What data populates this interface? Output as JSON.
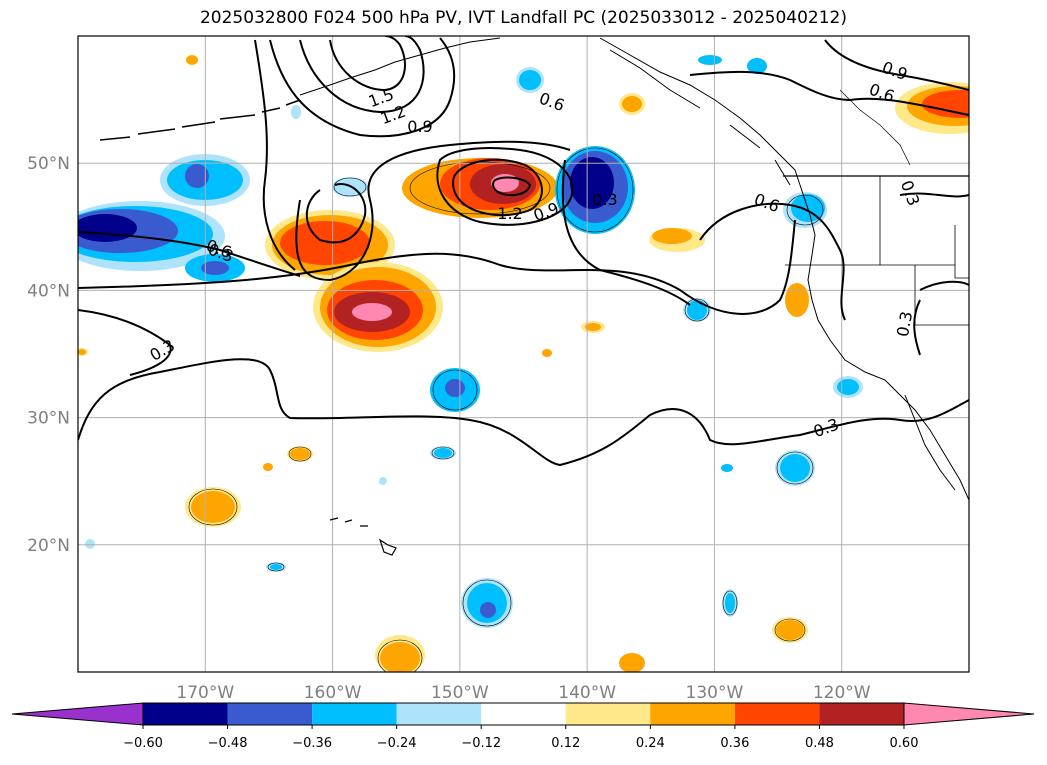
{
  "title": "2025032800 F024 500 hPa PV, IVT Landfall PC (2025033012 - 2025040212)",
  "chart_data": {
    "type": "heatmap",
    "title": "2025032800 F024 500 hPa PV, IVT Landfall PC (2025033012 - 2025040212)",
    "lon_range": [
      -180,
      -110
    ],
    "lat_range": [
      10,
      60
    ],
    "xlabel": "",
    "ylabel": "",
    "lat_ticks": [
      {
        "value": 50,
        "label": "50°N"
      },
      {
        "value": 40,
        "label": "40°N"
      },
      {
        "value": 30,
        "label": "30°N"
      },
      {
        "value": 20,
        "label": "20°N"
      }
    ],
    "lon_ticks": [
      {
        "value": -170,
        "label": "170°W"
      },
      {
        "value": -160,
        "label": "160°W"
      },
      {
        "value": -150,
        "label": "150°W"
      },
      {
        "value": -140,
        "label": "140°W"
      },
      {
        "value": -130,
        "label": "130°W"
      },
      {
        "value": -120,
        "label": "120°W"
      }
    ],
    "grid": true,
    "colorbar": {
      "position": "bottom",
      "extend": "both",
      "levels": [
        -0.6,
        -0.48,
        -0.36,
        -0.24,
        -0.12,
        0.12,
        0.24,
        0.36,
        0.48,
        0.6
      ],
      "tick_labels": [
        "−0.60",
        "−0.48",
        "−0.36",
        "−0.24",
        "−0.12",
        "0.12",
        "0.24",
        "0.36",
        "0.48",
        "0.60"
      ],
      "colors": [
        "#9932cc",
        "#00008b",
        "#3a5bd0",
        "#00bfff",
        "#aee3fb",
        "#ffffff",
        "#ffe88a",
        "#ffa500",
        "#ff4500",
        "#b22222",
        "#ff88b0"
      ]
    },
    "contour_labels": [
      "1.5",
      "1.2",
      "0.9",
      "0.6",
      "0.3",
      "1.2",
      "0.9",
      "0.3",
      "0.6",
      "0.3",
      "0.3",
      "0.3",
      "0.9",
      "0.6",
      "0.3",
      "0.6"
    ],
    "pc_features": [
      {
        "lon": -147,
        "lat": 48,
        "value": 0.62
      },
      {
        "lon": -140,
        "lat": 48,
        "value": -0.6
      },
      {
        "lon": -176,
        "lat": 45,
        "value": -0.6
      },
      {
        "lon": -154,
        "lat": 38,
        "value": 0.62
      },
      {
        "lon": -157,
        "lat": 43.5,
        "value": 0.45
      },
      {
        "lon": -171,
        "lat": 49,
        "value": -0.4
      },
      {
        "lon": -113,
        "lat": 54.5,
        "value": 0.45
      },
      {
        "lon": -149,
        "lat": 32,
        "value": -0.4
      },
      {
        "lon": -170,
        "lat": 23,
        "value": 0.3
      },
      {
        "lon": -148,
        "lat": 15,
        "value": -0.4
      },
      {
        "lon": -124,
        "lat": 13,
        "value": 0.3
      },
      {
        "lon": -126,
        "lat": 47.5,
        "value": -0.3
      },
      {
        "lon": -124,
        "lat": 26,
        "value": -0.3
      }
    ]
  }
}
